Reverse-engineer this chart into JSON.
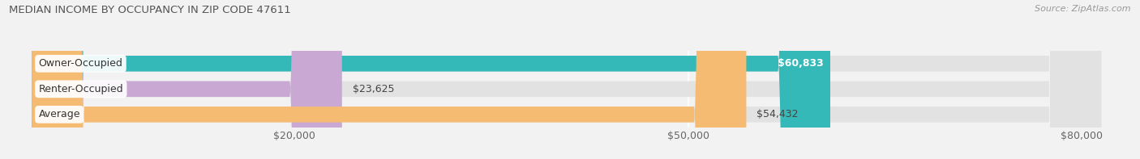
{
  "title": "MEDIAN INCOME BY OCCUPANCY IN ZIP CODE 47611",
  "source": "Source: ZipAtlas.com",
  "categories": [
    "Owner-Occupied",
    "Renter-Occupied",
    "Average"
  ],
  "values": [
    60833,
    23625,
    54432
  ],
  "bar_colors": [
    "#35b8b8",
    "#c9a8d4",
    "#f5bb72"
  ],
  "bar_labels": [
    "$60,833",
    "$23,625",
    "$54,432"
  ],
  "label_inside": [
    true,
    false,
    false
  ],
  "background_color": "#f2f2f2",
  "bar_bg_color": "#e2e2e2",
  "xlim_min": -2000,
  "xlim_max": 84000,
  "xticks": [
    20000,
    50000,
    80000
  ],
  "xtick_labels": [
    "$20,000",
    "$50,000",
    "$80,000"
  ],
  "bar_height": 0.62,
  "label_fontsize": 9,
  "value_fontsize": 9,
  "title_fontsize": 9.5,
  "source_fontsize": 8
}
